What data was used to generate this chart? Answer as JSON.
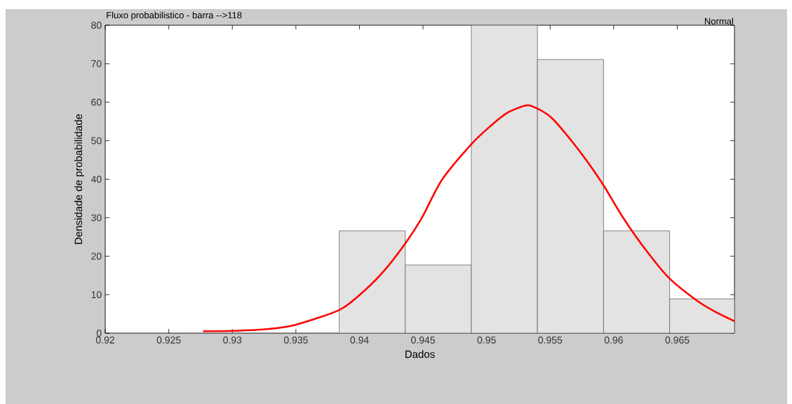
{
  "chart_data": {
    "type": "histogram",
    "title": "Fluxo probabilistico - barra -->118",
    "annotations": [
      "Normal"
    ],
    "xlabel": "Dados",
    "ylabel": "Densidade de probabilidade",
    "xlim": [
      0.92,
      0.9695
    ],
    "ylim": [
      0,
      80
    ],
    "xticks": [
      0.92,
      0.925,
      0.93,
      0.935,
      0.94,
      0.945,
      0.95,
      0.955,
      0.96,
      0.965
    ],
    "yticks": [
      0,
      10,
      20,
      30,
      40,
      50,
      60,
      70,
      80
    ],
    "series": [
      {
        "type": "histogram",
        "color": "#e3e3e3",
        "bins": [
          0.9384,
          0.9436,
          0.9488,
          0.954,
          0.9592,
          0.9644,
          0.9695
        ],
        "values": [
          26.6,
          17.7,
          80,
          71.1,
          26.6,
          8.9
        ]
      },
      {
        "type": "line",
        "color": "#ff0000",
        "x": [
          0.9277,
          0.93,
          0.9329,
          0.935,
          0.9384,
          0.94,
          0.9418,
          0.9436,
          0.9449,
          0.9465,
          0.9488,
          0.9503,
          0.9516,
          0.953,
          0.9537,
          0.9551,
          0.9566,
          0.9579,
          0.9592,
          0.9607,
          0.9623,
          0.9643,
          0.9664,
          0.9679,
          0.9695
        ],
        "values": [
          0.5,
          0.6,
          1.1,
          2.2,
          6,
          9.9,
          15.7,
          23.3,
          29.9,
          39.9,
          49.1,
          53.8,
          57.2,
          59.1,
          58.8,
          56,
          50.3,
          44.7,
          38.4,
          30.2,
          22.6,
          14.5,
          8.8,
          5.7,
          3.1
        ]
      }
    ]
  }
}
